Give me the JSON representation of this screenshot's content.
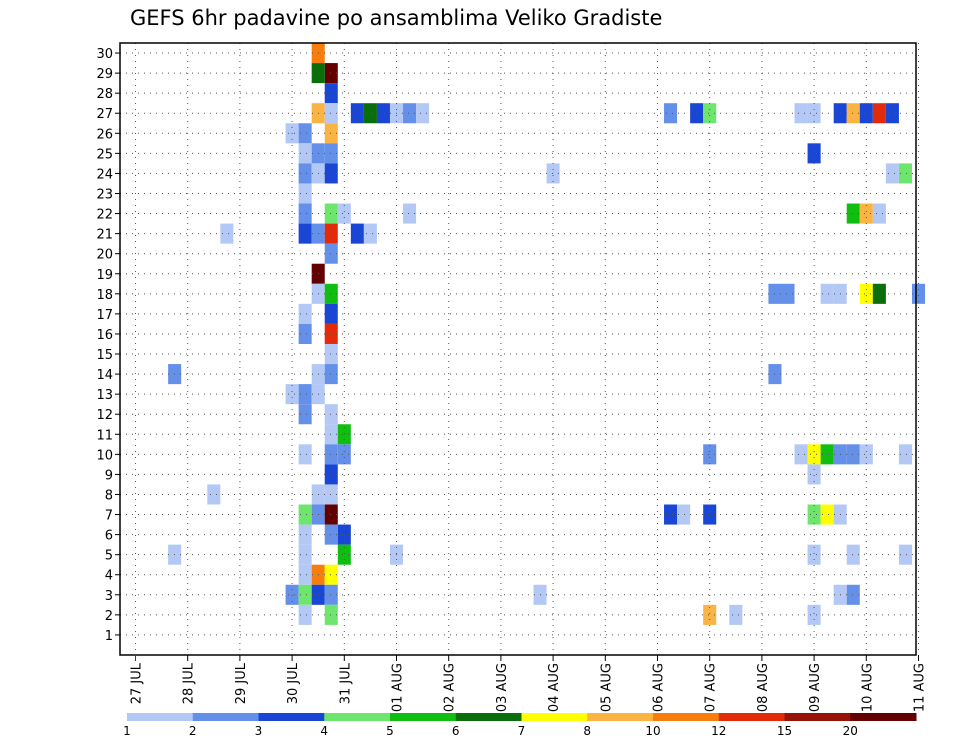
{
  "chart_data": {
    "type": "heatmap",
    "title": "GEFS 6hr padavine po ansamblima Veliko Gradiste",
    "xlabel": "",
    "ylabel": "",
    "x_range": [
      "2018-07-27 00Z",
      "2018-08-11 00Z"
    ],
    "x_step_hours": 6,
    "y_range": [
      0,
      30
    ],
    "grid": true,
    "x_ticks": [
      "27 JUL",
      "28 JUL",
      "29 JUL",
      "30 JUL",
      "31 JUL",
      "01 AUG",
      "02 AUG",
      "03 AUG",
      "04 AUG",
      "05 AUG",
      "06 AUG",
      "07 AUG",
      "08 AUG",
      "09 AUG",
      "10 AUG",
      "11 AUG"
    ],
    "y_ticks": [
      1,
      2,
      3,
      4,
      5,
      6,
      7,
      8,
      9,
      10,
      11,
      12,
      13,
      14,
      15,
      16,
      17,
      18,
      19,
      20,
      21,
      22,
      23,
      24,
      25,
      26,
      27,
      28,
      29,
      30
    ],
    "colorbar": {
      "labels": [
        "1",
        "2",
        "3",
        "4",
        "5",
        "6",
        "7",
        "8",
        "10",
        "12",
        "15",
        "20"
      ],
      "colors": [
        "#b4c8f5",
        "#6490ea",
        "#1a46d6",
        "#6ee66e",
        "#0fbe0f",
        "#0a6e0a",
        "#ffff00",
        "#fab443",
        "#f77d0c",
        "#e32b0a",
        "#96130a",
        "#640000"
      ]
    },
    "cells_legend": "each cell: [member, step(0=27 JUL 00Z, 6h per step), color index into colorbar.colors]",
    "cells": [
      [
        30,
        14,
        8
      ],
      [
        29,
        15,
        11
      ],
      [
        29,
        14,
        5
      ],
      [
        28,
        15,
        2
      ],
      [
        27,
        14,
        7
      ],
      [
        27,
        15,
        0
      ],
      [
        27,
        17,
        2
      ],
      [
        27,
        18,
        5
      ],
      [
        27,
        19,
        2
      ],
      [
        27,
        20,
        0
      ],
      [
        27,
        21,
        1
      ],
      [
        27,
        22,
        0
      ],
      [
        27,
        41,
        1
      ],
      [
        27,
        43,
        2
      ],
      [
        27,
        44,
        3
      ],
      [
        27,
        51,
        0
      ],
      [
        27,
        52,
        0
      ],
      [
        27,
        54,
        2
      ],
      [
        27,
        55,
        7
      ],
      [
        27,
        56,
        2
      ],
      [
        27,
        57,
        9
      ],
      [
        27,
        58,
        2
      ],
      [
        26,
        12,
        0
      ],
      [
        26,
        13,
        1
      ],
      [
        26,
        15,
        7
      ],
      [
        25,
        13,
        0
      ],
      [
        25,
        14,
        1
      ],
      [
        25,
        15,
        1
      ],
      [
        25,
        52,
        2
      ],
      [
        24,
        13,
        1
      ],
      [
        24,
        14,
        0
      ],
      [
        24,
        15,
        2
      ],
      [
        24,
        32,
        0
      ],
      [
        24,
        58,
        0
      ],
      [
        24,
        59,
        3
      ],
      [
        23,
        13,
        0
      ],
      [
        22,
        13,
        1
      ],
      [
        22,
        15,
        3
      ],
      [
        22,
        16,
        0
      ],
      [
        22,
        21,
        0
      ],
      [
        22,
        55,
        4
      ],
      [
        22,
        56,
        7
      ],
      [
        22,
        57,
        0
      ],
      [
        21,
        7,
        0
      ],
      [
        21,
        13,
        2
      ],
      [
        21,
        14,
        1
      ],
      [
        21,
        15,
        9
      ],
      [
        21,
        17,
        2
      ],
      [
        21,
        18,
        0
      ],
      [
        20,
        15,
        1
      ],
      [
        19,
        14,
        11
      ],
      [
        18,
        14,
        0
      ],
      [
        18,
        15,
        4
      ],
      [
        18,
        49,
        1
      ],
      [
        18,
        50,
        1
      ],
      [
        18,
        53,
        0
      ],
      [
        18,
        54,
        0
      ],
      [
        18,
        56,
        6
      ],
      [
        18,
        57,
        5
      ],
      [
        18,
        60,
        1
      ],
      [
        17,
        13,
        0
      ],
      [
        17,
        15,
        2
      ],
      [
        16,
        13,
        1
      ],
      [
        16,
        15,
        9
      ],
      [
        15,
        15,
        0
      ],
      [
        14,
        3,
        1
      ],
      [
        14,
        14,
        0
      ],
      [
        14,
        15,
        1
      ],
      [
        14,
        49,
        1
      ],
      [
        13,
        12,
        0
      ],
      [
        13,
        13,
        1
      ],
      [
        13,
        14,
        0
      ],
      [
        12,
        13,
        1
      ],
      [
        12,
        15,
        0
      ],
      [
        11,
        15,
        0
      ],
      [
        11,
        16,
        4
      ],
      [
        10,
        13,
        0
      ],
      [
        10,
        15,
        1
      ],
      [
        10,
        16,
        1
      ],
      [
        10,
        44,
        1
      ],
      [
        10,
        51,
        0
      ],
      [
        10,
        52,
        6
      ],
      [
        10,
        53,
        4
      ],
      [
        10,
        54,
        1
      ],
      [
        10,
        55,
        1
      ],
      [
        10,
        56,
        0
      ],
      [
        10,
        59,
        0
      ],
      [
        9,
        15,
        2
      ],
      [
        9,
        52,
        0
      ],
      [
        8,
        6,
        0
      ],
      [
        8,
        14,
        0
      ],
      [
        8,
        15,
        0
      ],
      [
        7,
        13,
        3
      ],
      [
        7,
        14,
        1
      ],
      [
        7,
        15,
        11
      ],
      [
        7,
        41,
        2
      ],
      [
        7,
        42,
        0
      ],
      [
        7,
        44,
        2
      ],
      [
        7,
        52,
        3
      ],
      [
        7,
        53,
        6
      ],
      [
        7,
        54,
        0
      ],
      [
        6,
        13,
        0
      ],
      [
        6,
        15,
        1
      ],
      [
        6,
        16,
        2
      ],
      [
        5,
        3,
        0
      ],
      [
        5,
        13,
        0
      ],
      [
        5,
        16,
        4
      ],
      [
        5,
        20,
        0
      ],
      [
        5,
        52,
        0
      ],
      [
        5,
        55,
        0
      ],
      [
        5,
        59,
        0
      ],
      [
        4,
        13,
        0
      ],
      [
        4,
        14,
        8
      ],
      [
        4,
        15,
        6
      ],
      [
        3,
        12,
        1
      ],
      [
        3,
        13,
        3
      ],
      [
        3,
        14,
        2
      ],
      [
        3,
        15,
        1
      ],
      [
        3,
        31,
        0
      ],
      [
        3,
        54,
        0
      ],
      [
        3,
        55,
        1
      ],
      [
        2,
        13,
        0
      ],
      [
        2,
        15,
        3
      ],
      [
        2,
        44,
        7
      ],
      [
        2,
        46,
        0
      ],
      [
        2,
        52,
        0
      ]
    ]
  }
}
